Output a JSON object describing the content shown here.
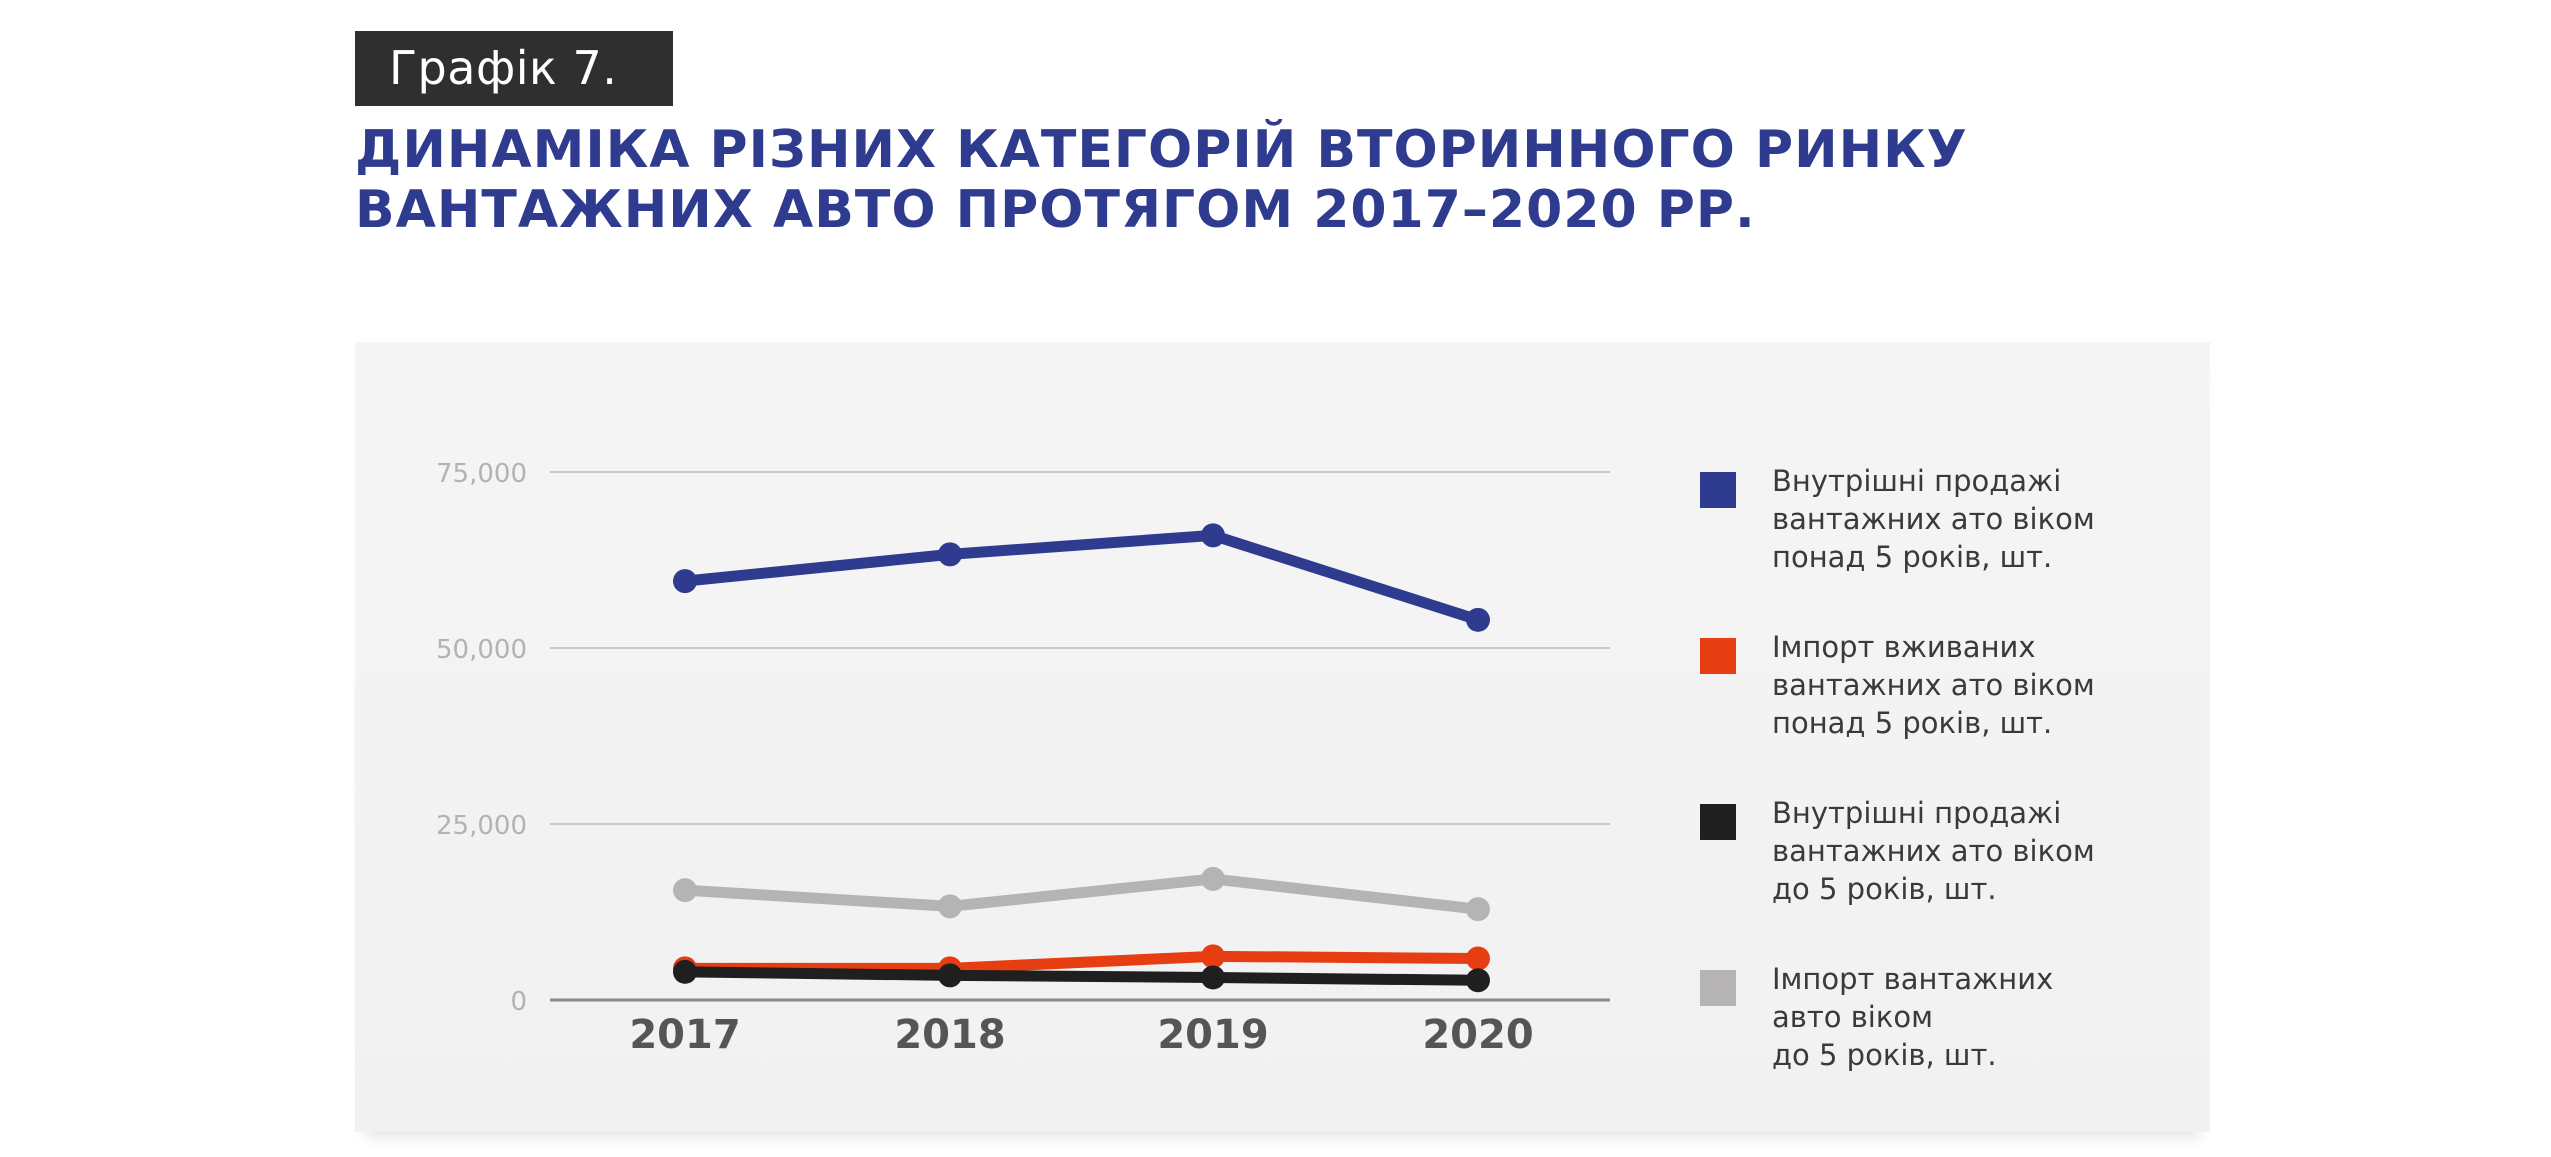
{
  "figure_label": "Графік 7.",
  "title_lines": [
    "ДИНАМІКА РІЗНИХ КАТЕГОРІЙ ВТОРИННОГО РИНКУ",
    "ВАНТАЖНИХ АВТО ПРОТЯГОМ 2017–2020 РР."
  ],
  "colors": {
    "title": "#2e3b8f",
    "series_domestic_over5": "#2e3b8f",
    "series_import_over5": "#e63d12",
    "series_domestic_under5": "#1f1f1f",
    "series_import_under5": "#b5b3b3"
  },
  "legend": [
    {
      "color": "#2e3b8f",
      "lines": [
        "Внутрішні продажі",
        "вантажних ато віком",
        "понад 5 років, шт."
      ]
    },
    {
      "color": "#e63d12",
      "lines": [
        "Імпорт вживаних",
        "вантажних ато віком",
        "понад 5 років, шт."
      ]
    },
    {
      "color": "#1f1f1f",
      "lines": [
        "Внутрішні продажі",
        "вантажних ато віком",
        "до 5 років, шт."
      ]
    },
    {
      "color": "#b5b3b3",
      "lines": [
        "Імпорт вантажних",
        "авто віком",
        "до 5 років, шт."
      ]
    }
  ],
  "chart_data": {
    "type": "line",
    "title": "",
    "xlabel": "",
    "ylabel": "",
    "categories": [
      "2017",
      "2018",
      "2019",
      "2020"
    ],
    "ylim": [
      0,
      75000
    ],
    "yticks": [
      0,
      25000,
      50000,
      75000
    ],
    "ytick_labels": [
      "0",
      "25,000",
      "50,000",
      "75,000"
    ],
    "grid": true,
    "legend_position": "right",
    "series": [
      {
        "name": "Внутрішні продажі вантажних ато віком понад 5 років, шт.",
        "color": "#2e3b8f",
        "values": [
          59500,
          63300,
          66000,
          54000
        ]
      },
      {
        "name": "Імпорт вантажних авто віком до 5 років, шт.",
        "color": "#b5b3b3",
        "values": [
          15600,
          13300,
          17200,
          12900
        ]
      },
      {
        "name": "Імпорт вживаних вантажних ато віком понад 5 років, шт.",
        "color": "#e63d12",
        "values": [
          4500,
          4500,
          6200,
          5900
        ]
      },
      {
        "name": "Внутрішні продажі вантажних ато віком до 5 років, шт.",
        "color": "#1f1f1f",
        "values": [
          4000,
          3500,
          3200,
          2800
        ]
      }
    ]
  }
}
